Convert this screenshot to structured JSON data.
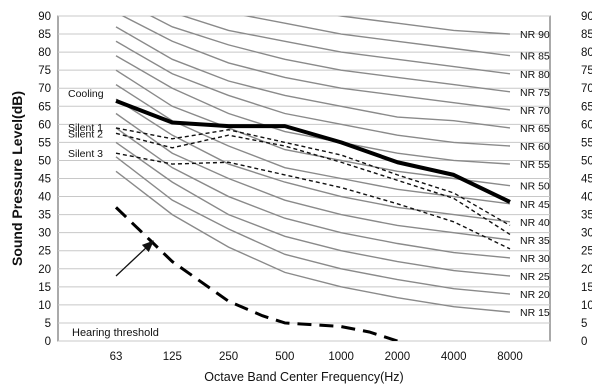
{
  "chart_data": {
    "type": "line",
    "title": "",
    "xlabel": "Octave Band Center Frequency(Hz)",
    "ylabel": "Sound Pressure Level(dB)",
    "categories": [
      "63",
      "125",
      "250",
      "500",
      "1000",
      "2000",
      "4000",
      "8000"
    ],
    "ylim": [
      0,
      90
    ],
    "yticks": [
      "0",
      "5",
      "10",
      "15",
      "20",
      "25",
      "30",
      "35",
      "40",
      "45",
      "50",
      "55",
      "60",
      "65",
      "70",
      "75",
      "80",
      "85",
      "90"
    ],
    "grid": true,
    "nr_curves": [
      {
        "name": "NR 15",
        "values": [
          47,
          35,
          26,
          19,
          15,
          12,
          9.5,
          8
        ]
      },
      {
        "name": "NR 20",
        "values": [
          51,
          39,
          31,
          24,
          20,
          17,
          14.5,
          13
        ]
      },
      {
        "name": "NR 25",
        "values": [
          55,
          44,
          35,
          29,
          25,
          22,
          19.5,
          18
        ]
      },
      {
        "name": "NR 30",
        "values": [
          59,
          48,
          40,
          34,
          30,
          27,
          24.5,
          23
        ]
      },
      {
        "name": "NR 35",
        "values": [
          63,
          52,
          45,
          39,
          35,
          32,
          30,
          28
        ]
      },
      {
        "name": "NR 40",
        "values": [
          67,
          57,
          49,
          44,
          40,
          37,
          35,
          33
        ]
      },
      {
        "name": "NR 45",
        "values": [
          71,
          61,
          54,
          48,
          45,
          42,
          40,
          38
        ]
      },
      {
        "name": "NR 50",
        "values": [
          75,
          65,
          59,
          53,
          50,
          47,
          45,
          43
        ]
      },
      {
        "name": "NR 55",
        "values": [
          79,
          70,
          63,
          58,
          55,
          52,
          50,
          49
        ]
      },
      {
        "name": "NR 60",
        "values": [
          83,
          74,
          68,
          63,
          60,
          57,
          55,
          54
        ]
      },
      {
        "name": "NR 65",
        "values": [
          87,
          78,
          72,
          68,
          65,
          62,
          61,
          59
        ]
      },
      {
        "name": "NR 70",
        "values": [
          91,
          83,
          77,
          73,
          70,
          68,
          66,
          64
        ]
      },
      {
        "name": "NR 75",
        "values": [
          95,
          87,
          82,
          78,
          75,
          73,
          71,
          69
        ]
      },
      {
        "name": "NR 80",
        "values": [
          99,
          91,
          86,
          83,
          80,
          78,
          76,
          74
        ]
      },
      {
        "name": "NR 85",
        "values": [
          103,
          96,
          91,
          88,
          85,
          83,
          81,
          79
        ]
      },
      {
        "name": "NR 90",
        "values": [
          107,
          100,
          95,
          93,
          90,
          88,
          86,
          85
        ]
      }
    ],
    "series": [
      {
        "name": "Cooling",
        "values": [
          66.5,
          60.5,
          59.5,
          59.5,
          55,
          49.5,
          46,
          38.5
        ]
      },
      {
        "name": "Silent 1",
        "values": [
          59,
          56,
          58.5,
          55,
          51.5,
          46,
          41,
          32
        ]
      },
      {
        "name": "Silent 2",
        "values": [
          57.5,
          53.5,
          57,
          54,
          49.5,
          44.5,
          39.5,
          29.5
        ]
      },
      {
        "name": "Silent 3",
        "values": [
          52,
          49,
          49.5,
          46,
          42.5,
          38,
          33,
          25.5
        ]
      }
    ],
    "hearing_threshold": {
      "name": "Hearing threshold",
      "points": [
        [
          0,
          37
        ],
        [
          0.6,
          28
        ],
        [
          1,
          22
        ],
        [
          2,
          11
        ],
        [
          2.6,
          7
        ],
        [
          3,
          5
        ],
        [
          3.5,
          4.5
        ],
        [
          4,
          4
        ],
        [
          4.5,
          2.5
        ],
        [
          5,
          0
        ]
      ]
    },
    "arrow": {
      "from": [
        0,
        18
      ],
      "to": [
        0.65,
        27.5
      ]
    }
  }
}
